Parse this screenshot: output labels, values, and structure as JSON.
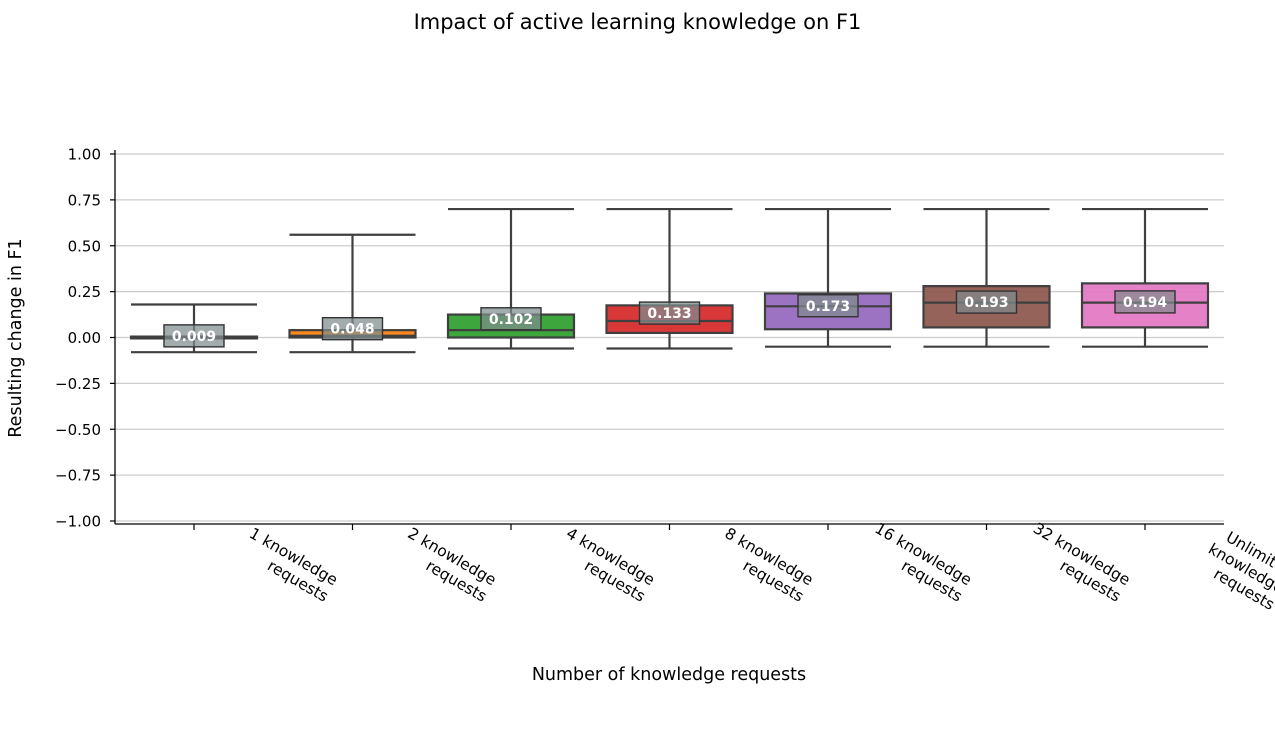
{
  "chart_data": {
    "type": "box",
    "title": "Impact of active learning knowledge on F1",
    "xlabel": "Number of knowledge requests",
    "ylabel": "Resulting change in F1",
    "ylim": [
      -1.0,
      1.0
    ],
    "yticks": [
      "1.00",
      "0.75",
      "0.50",
      "0.25",
      "0.00",
      "−0.25",
      "−0.50",
      "−0.75",
      "−1.00"
    ],
    "ytick_values": [
      1.0,
      0.75,
      0.5,
      0.25,
      0.0,
      -0.25,
      -0.5,
      -0.75,
      -1.0
    ],
    "grid": "horizontal",
    "categories": [
      [
        "1 knowledge",
        "requests"
      ],
      [
        "2 knowledge",
        "requests"
      ],
      [
        "4 knowledge",
        "requests"
      ],
      [
        "8 knowledge",
        "requests"
      ],
      [
        "16 knowledge",
        "requests"
      ],
      [
        "32 knowledge",
        "requests"
      ],
      [
        "Unlimited",
        "knowledge",
        "requests"
      ]
    ],
    "boxes": [
      {
        "whisker_low": -0.08,
        "q1": -0.005,
        "median": 0.0,
        "q3": 0.005,
        "whisker_high": 0.18,
        "mean_label": "0.009",
        "color": "#7f7f7f"
      },
      {
        "whisker_low": -0.08,
        "q1": 0.0,
        "median": 0.01,
        "q3": 0.04,
        "whisker_high": 0.56,
        "mean_label": "0.048",
        "color": "#ff7f0e"
      },
      {
        "whisker_low": -0.06,
        "q1": 0.0,
        "median": 0.04,
        "q3": 0.125,
        "whisker_high": 0.7,
        "mean_label": "0.102",
        "color": "#2ca02c"
      },
      {
        "whisker_low": -0.06,
        "q1": 0.025,
        "median": 0.09,
        "q3": 0.175,
        "whisker_high": 0.7,
        "mean_label": "0.133",
        "color": "#d62728"
      },
      {
        "whisker_low": -0.05,
        "q1": 0.045,
        "median": 0.17,
        "q3": 0.24,
        "whisker_high": 0.7,
        "mean_label": "0.173",
        "color": "#9467bd"
      },
      {
        "whisker_low": -0.05,
        "q1": 0.055,
        "median": 0.19,
        "q3": 0.28,
        "whisker_high": 0.7,
        "mean_label": "0.193",
        "color": "#8c564b"
      },
      {
        "whisker_low": -0.05,
        "q1": 0.055,
        "median": 0.19,
        "q3": 0.295,
        "whisker_high": 0.7,
        "mean_label": "0.194",
        "color": "#e377c2"
      }
    ]
  }
}
